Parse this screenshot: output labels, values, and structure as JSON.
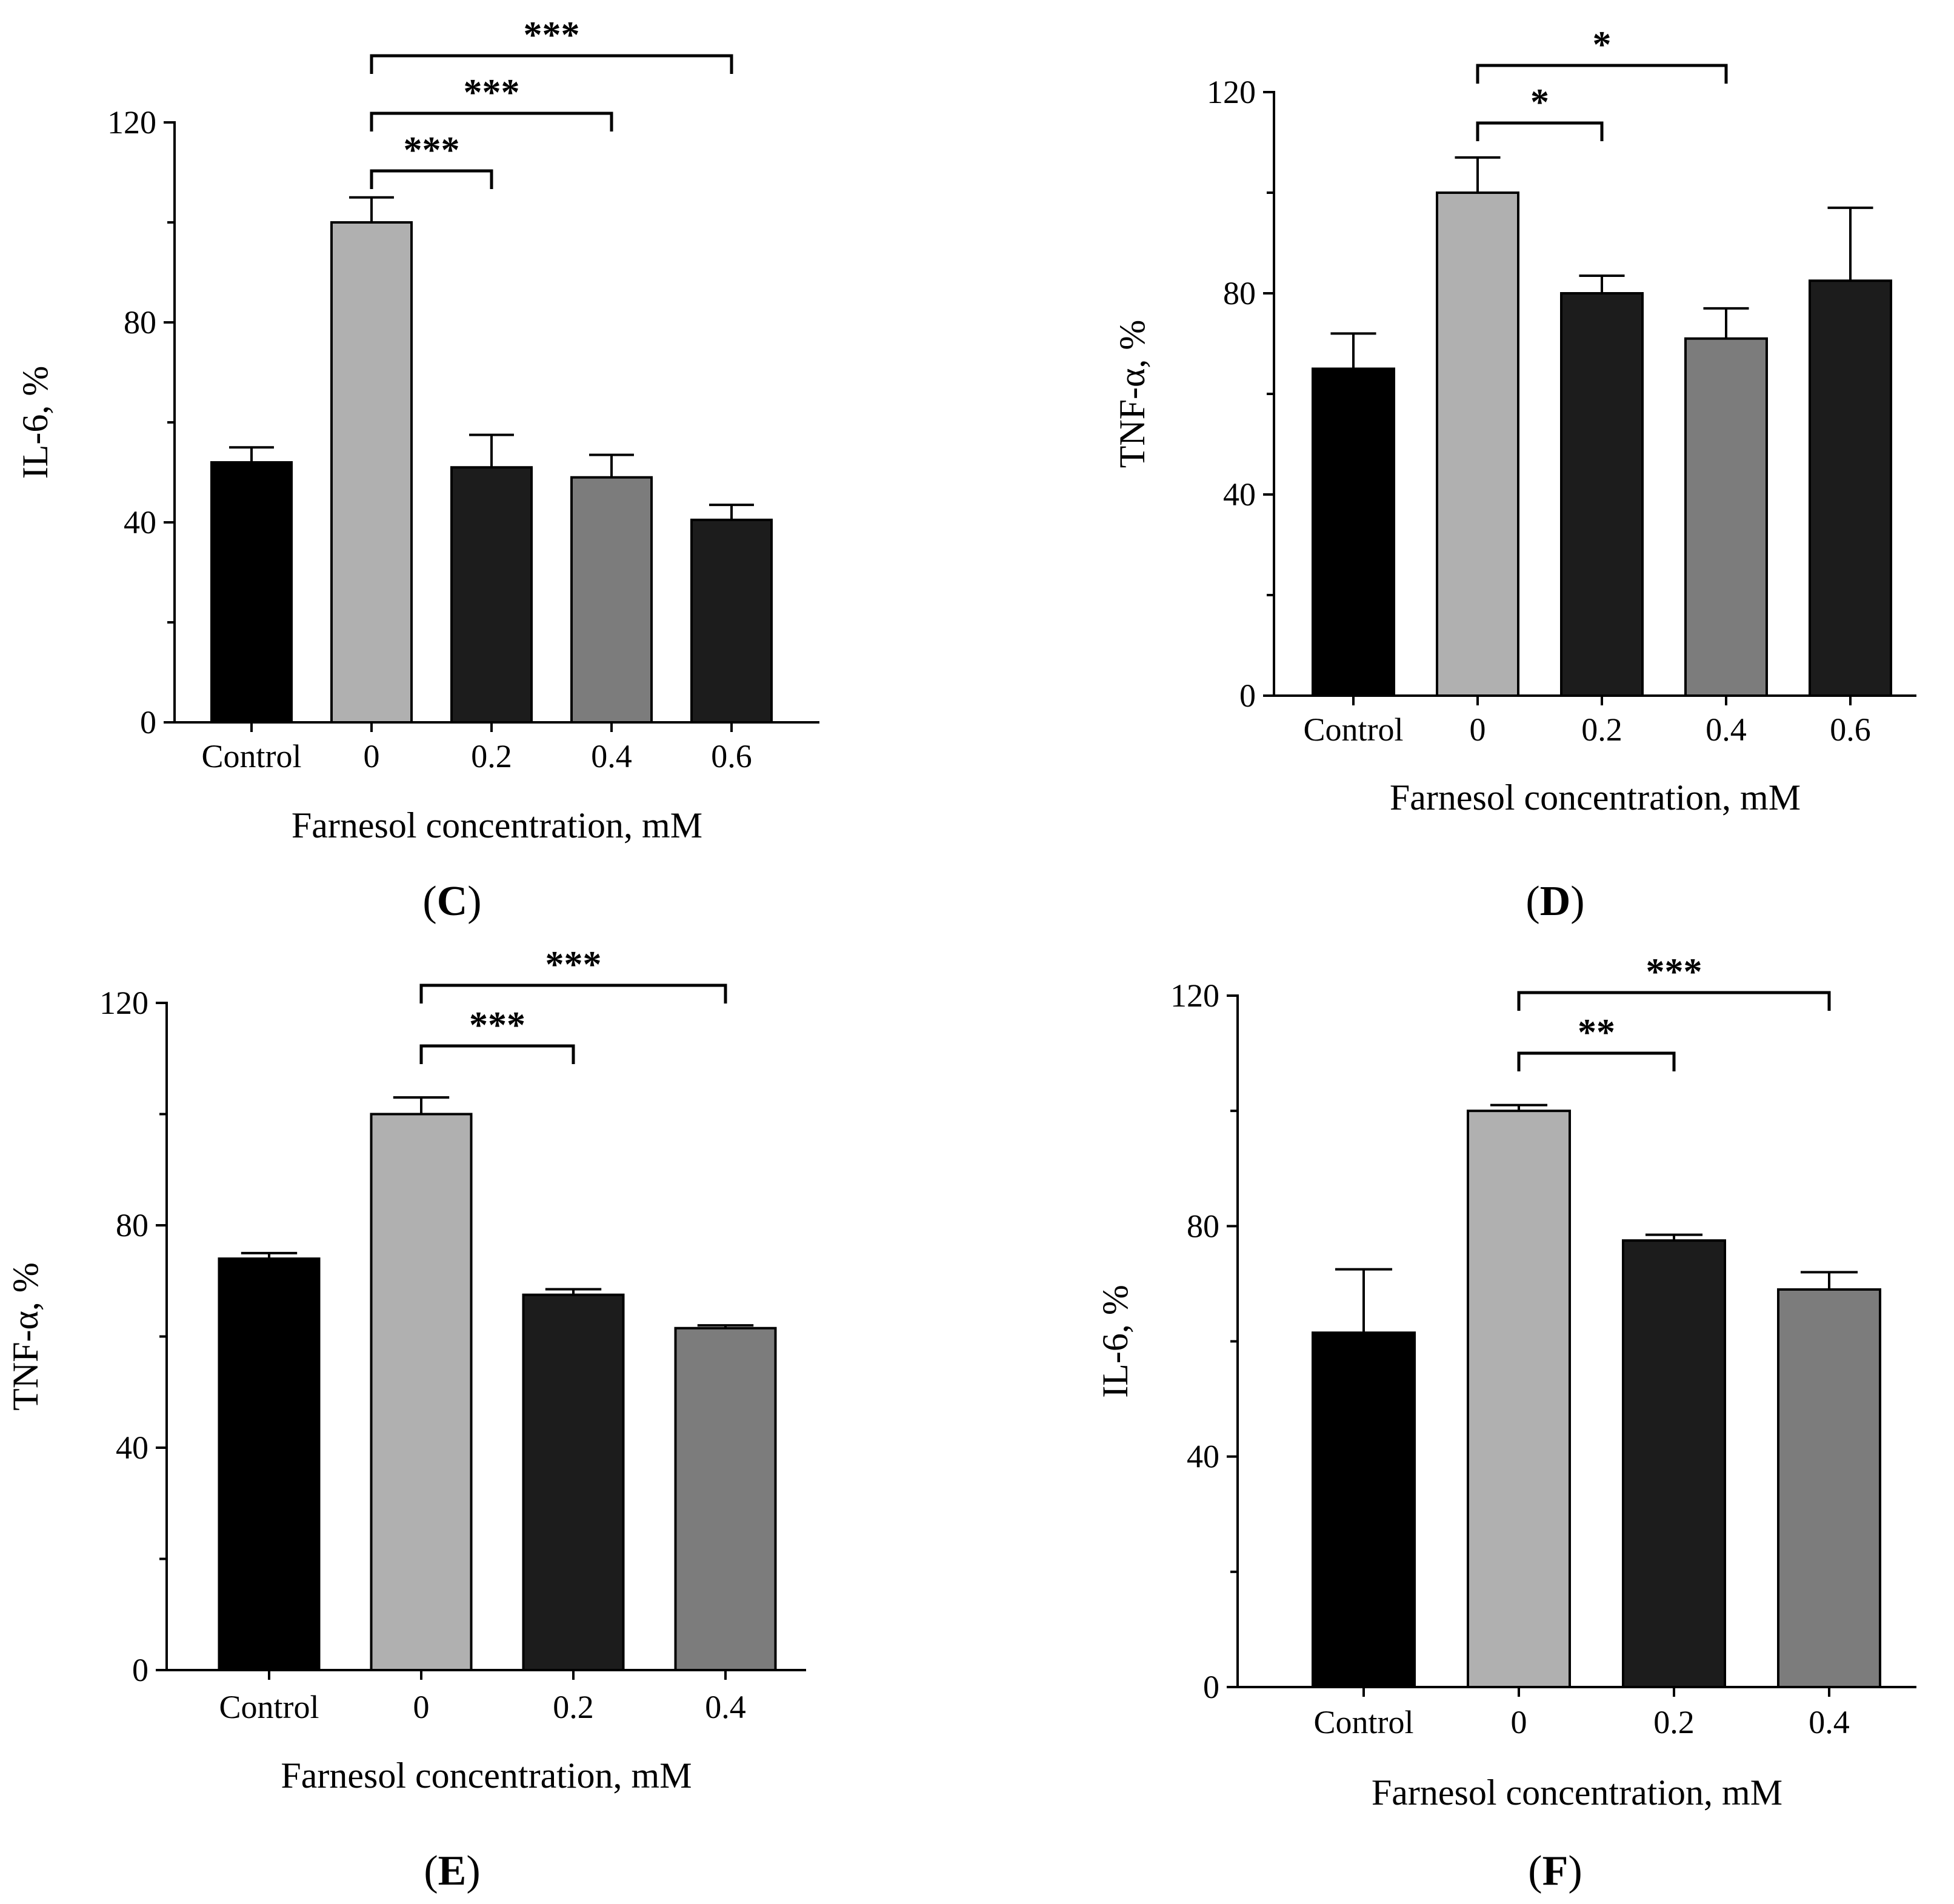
{
  "figure": {
    "panels": [
      "C",
      "D",
      "E",
      "F"
    ]
  },
  "chart_data": [
    {
      "type": "bar",
      "panel": "C",
      "title": "",
      "xlabel": "Farnesol concentration, mM",
      "ylabel": "IL-6, %",
      "ylim": [
        0,
        120
      ],
      "yticks": [
        "0",
        "40",
        "80",
        "120"
      ],
      "categories": [
        "Control",
        "0",
        "0.2",
        "0.4",
        "0.6"
      ],
      "values": [
        52,
        100,
        51,
        49,
        40.5
      ],
      "errors": [
        3,
        5,
        6.5,
        4.5,
        3
      ],
      "bar_colors": [
        "#000000",
        "#b0b0b0",
        "#1c1c1c",
        "#7c7c7c",
        "#1c1c1c"
      ],
      "significance": [
        {
          "from": 1,
          "to": 2,
          "label": "***"
        },
        {
          "from": 1,
          "to": 3,
          "label": "***"
        },
        {
          "from": 1,
          "to": 4,
          "label": "***"
        }
      ]
    },
    {
      "type": "bar",
      "panel": "D",
      "title": "",
      "xlabel": "Farnesol concentration, mM",
      "ylabel": "TNF-α, %",
      "ylim": [
        0,
        120
      ],
      "yticks": [
        "0",
        "40",
        "80",
        "120"
      ],
      "categories": [
        "Control",
        "0",
        "0.2",
        "0.4",
        "0.6"
      ],
      "values": [
        65,
        100,
        80,
        71,
        82.5
      ],
      "errors": [
        7,
        7,
        3.5,
        6,
        14.5
      ],
      "bar_colors": [
        "#000000",
        "#b0b0b0",
        "#1c1c1c",
        "#7c7c7c",
        "#1c1c1c"
      ],
      "significance": [
        {
          "from": 1,
          "to": 2,
          "label": "*"
        },
        {
          "from": 1,
          "to": 3,
          "label": "*"
        }
      ]
    },
    {
      "type": "bar",
      "panel": "E",
      "title": "",
      "xlabel": "Farnesol concentration, mM",
      "ylabel": "TNF-α, %",
      "ylim": [
        0,
        120
      ],
      "yticks": [
        "0",
        "40",
        "80",
        "120"
      ],
      "categories": [
        "Control",
        "0",
        "0.2",
        "0.4"
      ],
      "values": [
        74,
        100,
        67.5,
        61.5
      ],
      "errors": [
        1,
        3,
        1,
        0.5
      ],
      "bar_colors": [
        "#000000",
        "#b0b0b0",
        "#1c1c1c",
        "#7c7c7c"
      ],
      "significance": [
        {
          "from": 1,
          "to": 2,
          "label": "***"
        },
        {
          "from": 1,
          "to": 3,
          "label": "***"
        }
      ]
    },
    {
      "type": "bar",
      "panel": "F",
      "title": "",
      "xlabel": "Farnesol concentration, mM",
      "ylabel": "IL-6, %",
      "ylim": [
        0,
        120
      ],
      "yticks": [
        "0",
        "40",
        "80",
        "120"
      ],
      "categories": [
        "Control",
        "0",
        "0.2",
        "0.4"
      ],
      "values": [
        61.5,
        100,
        77.5,
        69
      ],
      "errors": [
        11,
        1,
        1,
        3
      ],
      "bar_colors": [
        "#000000",
        "#b0b0b0",
        "#1c1c1c",
        "#7c7c7c"
      ],
      "significance": [
        {
          "from": 1,
          "to": 2,
          "label": "**"
        },
        {
          "from": 1,
          "to": 3,
          "label": "***"
        }
      ]
    }
  ]
}
